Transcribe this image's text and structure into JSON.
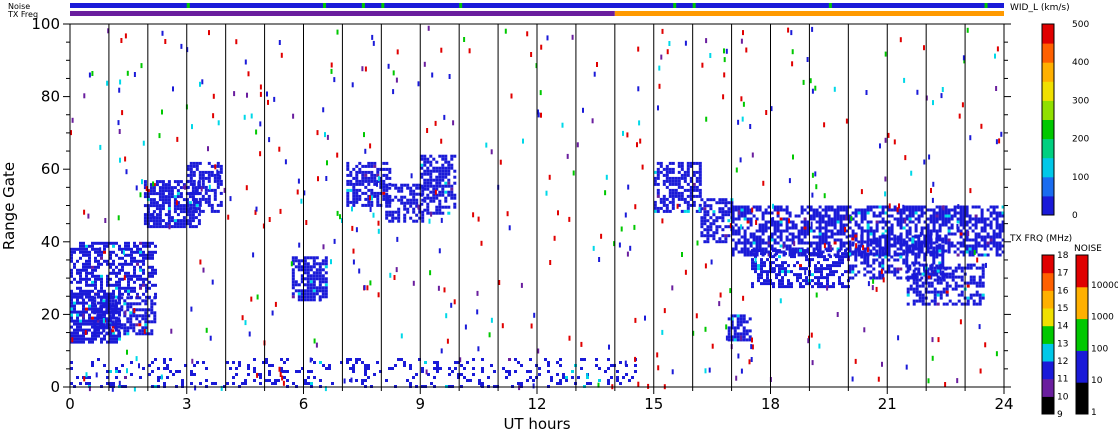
{
  "chart_data": {
    "type": "scatter",
    "xlabel": "UT hours",
    "ylabel": "Range Gate",
    "xlim": [
      0,
      24
    ],
    "ylim": [
      0,
      100
    ],
    "x_ticks": [
      0,
      3,
      6,
      9,
      12,
      15,
      18,
      21,
      24
    ],
    "y_ticks": [
      0,
      20,
      40,
      60,
      80,
      100
    ],
    "vertical_scan_lines_hours": [
      1,
      2,
      3,
      4,
      5,
      6,
      7,
      8,
      9,
      10,
      11,
      12,
      13,
      14,
      15,
      16,
      17,
      18,
      19,
      20,
      21,
      22,
      23
    ],
    "top_bars": {
      "noise_label": "Noise",
      "txfreq_label": "TX Freq",
      "txfreq_change_hour": 14
    },
    "echo_regions": [
      {
        "x": [
          0.0,
          1.3
        ],
        "y": [
          12,
          26
        ],
        "color": "#1a1ad8",
        "density": 0.75
      },
      {
        "x": [
          0.0,
          2.2
        ],
        "y": [
          25,
          40
        ],
        "color": "#1a1ad8",
        "density": 0.55
      },
      {
        "x": [
          0.6,
          2.2
        ],
        "y": [
          15,
          25
        ],
        "color": "#1a1ad8",
        "density": 0.6
      },
      {
        "x": [
          1.9,
          3.3
        ],
        "y": [
          44,
          57
        ],
        "color": "#1a1ad8",
        "density": 0.7
      },
      {
        "x": [
          3.0,
          3.9
        ],
        "y": [
          48,
          62
        ],
        "color": "#1a1ad8",
        "density": 0.55
      },
      {
        "x": [
          5.7,
          6.6
        ],
        "y": [
          24,
          36
        ],
        "color": "#1a1ad8",
        "density": 0.7
      },
      {
        "x": [
          7.1,
          8.2
        ],
        "y": [
          50,
          62
        ],
        "color": "#1a1ad8",
        "density": 0.6
      },
      {
        "x": [
          8.1,
          9.1
        ],
        "y": [
          46,
          56
        ],
        "color": "#1a1ad8",
        "density": 0.55
      },
      {
        "x": [
          9.0,
          9.9
        ],
        "y": [
          48,
          64
        ],
        "color": "#1a1ad8",
        "density": 0.6
      },
      {
        "x": [
          15.0,
          16.2
        ],
        "y": [
          48,
          62
        ],
        "color": "#1a1ad8",
        "density": 0.55
      },
      {
        "x": [
          16.2,
          17.0
        ],
        "y": [
          40,
          52
        ],
        "color": "#1a1ad8",
        "density": 0.6
      },
      {
        "x": [
          17.0,
          24.0
        ],
        "y": [
          36,
          50
        ],
        "color": "#1a1ad8",
        "density": 0.6
      },
      {
        "x": [
          17.5,
          20.0
        ],
        "y": [
          28,
          38
        ],
        "color": "#1a1ad8",
        "density": 0.55
      },
      {
        "x": [
          20.0,
          22.5
        ],
        "y": [
          30,
          42
        ],
        "color": "#1a1ad8",
        "density": 0.5
      },
      {
        "x": [
          21.5,
          23.5
        ],
        "y": [
          23,
          34
        ],
        "color": "#1a1ad8",
        "density": 0.55
      },
      {
        "x": [
          16.9,
          17.5
        ],
        "y": [
          13,
          20
        ],
        "color": "#1a1ad8",
        "density": 0.7
      },
      {
        "x": [
          0.0,
          14.5
        ],
        "y": [
          0,
          8
        ],
        "color": "#1a1ad8",
        "density": 0.18
      }
    ],
    "color_scales": [
      {
        "label": "WID_L (km/s)",
        "ticks": [
          0,
          100,
          200,
          300,
          400,
          500
        ]
      },
      {
        "label": "TX FRQ (MHz)",
        "ticks": [
          9,
          10,
          11,
          12,
          13,
          14,
          15,
          16,
          17,
          18
        ]
      },
      {
        "label": "NOISE",
        "ticks": [
          "1",
          "10",
          "100",
          "1000",
          "10000"
        ]
      }
    ]
  },
  "colors": {
    "low": "#1a1ad8",
    "cyan": "#00d8e8",
    "green": "#00c800",
    "red": "#e00000",
    "orange": "#ff9a00",
    "yellow": "#ffd800",
    "purple": "#6a1e9e"
  }
}
